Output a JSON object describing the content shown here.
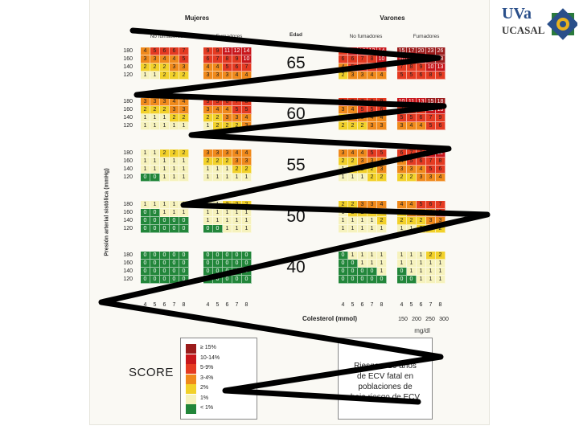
{
  "chart_data": {
    "type": "heatmap",
    "title": "SCORE",
    "group_labels": {
      "women": "Mujeres",
      "men": "Varones"
    },
    "smoker_labels": {
      "non_smoker": "No fumadores",
      "smoker": "Fumadores"
    },
    "age_header": "Edad",
    "ages": [
      "65",
      "60",
      "55",
      "50",
      "40"
    ],
    "ylabel": "Presión arterial sistólica (mmHg)",
    "blood_pressure_ticks": [
      "180",
      "160",
      "140",
      "120"
    ],
    "xlabel": "Colesterol (mmol)",
    "cholesterol_ticks": [
      "4",
      "5",
      "6",
      "7",
      "8"
    ],
    "mgdl_ticks": [
      "150",
      "200",
      "250",
      "300"
    ],
    "mgdl_label": "mg/dl",
    "legend": [
      {
        "label": "≥ 15%",
        "color": "#9b1b1b"
      },
      {
        "label": "10-14%",
        "color": "#c8161b"
      },
      {
        "label": "5-9%",
        "color": "#e53b22"
      },
      {
        "label": "3-4%",
        "color": "#f08a1c"
      },
      {
        "label": "2%",
        "color": "#f2d12a"
      },
      {
        "label": "1%",
        "color": "#f6f2bd"
      },
      {
        "label": "< 1%",
        "color": "#22863a"
      }
    ],
    "info_lines": [
      "Riesgo a 10 años",
      "de ECV fatal en",
      "poblaciones de",
      "bajo riesgo de ECV"
    ],
    "grids": [
      {
        "age": "65",
        "women_non": [
          [
            4,
            5,
            6,
            6,
            7
          ],
          [
            3,
            3,
            4,
            4,
            5
          ],
          [
            2,
            2,
            2,
            3,
            3
          ],
          [
            1,
            1,
            2,
            2,
            2
          ]
        ],
        "women_smk": [
          [
            9,
            9,
            11,
            12,
            14
          ],
          [
            6,
            7,
            8,
            9,
            10
          ],
          [
            4,
            4,
            5,
            6,
            7
          ],
          [
            3,
            3,
            3,
            4,
            4
          ]
        ],
        "men_non": [
          [
            9,
            10,
            12,
            12,
            14
          ],
          [
            6,
            6,
            7,
            8,
            10
          ],
          [
            4,
            5,
            5,
            6,
            7
          ],
          [
            2,
            3,
            3,
            4,
            4
          ]
        ],
        "men_smk": [
          [
            15,
            17,
            20,
            23,
            26
          ],
          [
            10,
            11,
            13,
            15,
            18
          ],
          [
            7,
            8,
            9,
            10,
            13
          ],
          [
            5,
            5,
            6,
            8,
            9
          ]
        ]
      },
      {
        "age": "60",
        "women_non": [
          [
            3,
            3,
            3,
            4,
            4
          ],
          [
            2,
            2,
            2,
            3,
            3
          ],
          [
            1,
            1,
            1,
            2,
            2
          ],
          [
            1,
            1,
            1,
            1,
            1
          ]
        ],
        "women_smk": [
          [
            5,
            5,
            6,
            7,
            8
          ],
          [
            3,
            4,
            4,
            5,
            5
          ],
          [
            2,
            2,
            3,
            3,
            4
          ],
          [
            1,
            2,
            2,
            2,
            3
          ]
        ],
        "men_non": [
          [
            5,
            6,
            7,
            8,
            9
          ],
          [
            3,
            4,
            5,
            5,
            6
          ],
          [
            2,
            3,
            3,
            4,
            4
          ],
          [
            2,
            2,
            2,
            3,
            3
          ]
        ],
        "men_smk": [
          [
            10,
            11,
            13,
            15,
            18
          ],
          [
            7,
            8,
            9,
            11,
            13
          ],
          [
            5,
            5,
            6,
            7,
            9
          ],
          [
            3,
            4,
            4,
            5,
            6
          ]
        ]
      },
      {
        "age": "55",
        "women_non": [
          [
            1,
            1,
            2,
            2,
            2
          ],
          [
            1,
            1,
            1,
            1,
            1
          ],
          [
            1,
            1,
            1,
            1,
            1
          ],
          [
            0,
            0,
            1,
            1,
            1
          ]
        ],
        "women_smk": [
          [
            3,
            3,
            3,
            4,
            4
          ],
          [
            2,
            2,
            2,
            3,
            3
          ],
          [
            1,
            1,
            1,
            2,
            2
          ],
          [
            1,
            1,
            1,
            1,
            1
          ]
        ],
        "men_non": [
          [
            3,
            4,
            4,
            5,
            5
          ],
          [
            2,
            2,
            3,
            3,
            4
          ],
          [
            1,
            2,
            2,
            2,
            3
          ],
          [
            1,
            1,
            1,
            2,
            2
          ]
        ],
        "men_smk": [
          [
            6,
            7,
            8,
            10,
            12
          ],
          [
            4,
            5,
            6,
            7,
            8
          ],
          [
            3,
            3,
            4,
            5,
            6
          ],
          [
            2,
            2,
            3,
            3,
            4
          ]
        ]
      },
      {
        "age": "50",
        "women_non": [
          [
            1,
            1,
            1,
            1,
            1
          ],
          [
            0,
            0,
            1,
            1,
            1
          ],
          [
            0,
            0,
            0,
            0,
            0
          ],
          [
            0,
            0,
            0,
            0,
            0
          ]
        ],
        "women_smk": [
          [
            1,
            1,
            2,
            2,
            2
          ],
          [
            1,
            1,
            1,
            1,
            1
          ],
          [
            1,
            1,
            1,
            1,
            1
          ],
          [
            0,
            0,
            1,
            1,
            1
          ]
        ],
        "men_non": [
          [
            2,
            2,
            3,
            3,
            4
          ],
          [
            1,
            2,
            2,
            2,
            2
          ],
          [
            1,
            1,
            1,
            1,
            2
          ],
          [
            1,
            1,
            1,
            1,
            1
          ]
        ],
        "men_smk": [
          [
            4,
            4,
            5,
            6,
            7
          ],
          [
            2,
            3,
            3,
            4,
            5
          ],
          [
            2,
            2,
            2,
            3,
            3
          ],
          [
            1,
            1,
            2,
            2,
            2
          ]
        ]
      },
      {
        "age": "40",
        "women_non": [
          [
            0,
            0,
            0,
            0,
            0
          ],
          [
            0,
            0,
            0,
            0,
            0
          ],
          [
            0,
            0,
            0,
            0,
            0
          ],
          [
            0,
            0,
            0,
            0,
            0
          ]
        ],
        "women_smk": [
          [
            0,
            0,
            0,
            0,
            0
          ],
          [
            0,
            0,
            0,
            0,
            0
          ],
          [
            0,
            0,
            0,
            0,
            0
          ],
          [
            0,
            0,
            0,
            0,
            0
          ]
        ],
        "men_non": [
          [
            0,
            1,
            1,
            1,
            1
          ],
          [
            0,
            0,
            1,
            1,
            1
          ],
          [
            0,
            0,
            0,
            0,
            1
          ],
          [
            0,
            0,
            0,
            0,
            0
          ]
        ],
        "men_smk": [
          [
            1,
            1,
            1,
            2,
            2
          ],
          [
            1,
            1,
            1,
            1,
            1
          ],
          [
            0,
            1,
            1,
            1,
            1
          ],
          [
            0,
            0,
            1,
            1,
            1
          ]
        ]
      }
    ]
  },
  "logo": {
    "line1": "UVa",
    "line2": "UCASAL"
  },
  "annotation": {
    "type": "freehand-zigzag",
    "color": "#000000"
  }
}
